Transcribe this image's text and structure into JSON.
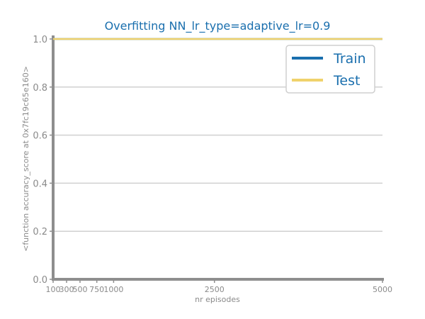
{
  "chart_data": {
    "type": "line",
    "title": "Overfitting NN_lr_type=adaptive_lr=0.9",
    "xlabel": "nr episodes",
    "ylabel": "<function accuracy_score at 0x7fc19c65e160>",
    "x": [
      100,
      300,
      500,
      750,
      1000,
      2500,
      5000
    ],
    "x_tick_labels": [
      "100",
      "300",
      "500",
      "750",
      "1000",
      "2500",
      "5000"
    ],
    "xlim": [
      100,
      5000
    ],
    "ylim": [
      0,
      1
    ],
    "y_ticks": [
      0.0,
      0.2,
      0.4,
      0.6,
      0.8,
      1.0
    ],
    "y_tick_labels": [
      "0.0",
      "0.2",
      "0.4",
      "0.6",
      "0.8",
      "1.0"
    ],
    "grid": "horizontal",
    "legend_position": "top-right",
    "series": [
      {
        "name": "Train",
        "color": "#1a6fae",
        "values": [
          1.0,
          1.0,
          1.0,
          1.0,
          1.0,
          1.0,
          1.0
        ]
      },
      {
        "name": "Test",
        "color": "#f0d26c",
        "values": [
          1.0,
          1.0,
          1.0,
          1.0,
          1.0,
          1.0,
          1.0
        ]
      }
    ],
    "colors": {
      "axis": "#8e8e8e",
      "grid": "#d0d0d0",
      "text": "#8a8a8a",
      "title": "#1a6fae"
    }
  }
}
